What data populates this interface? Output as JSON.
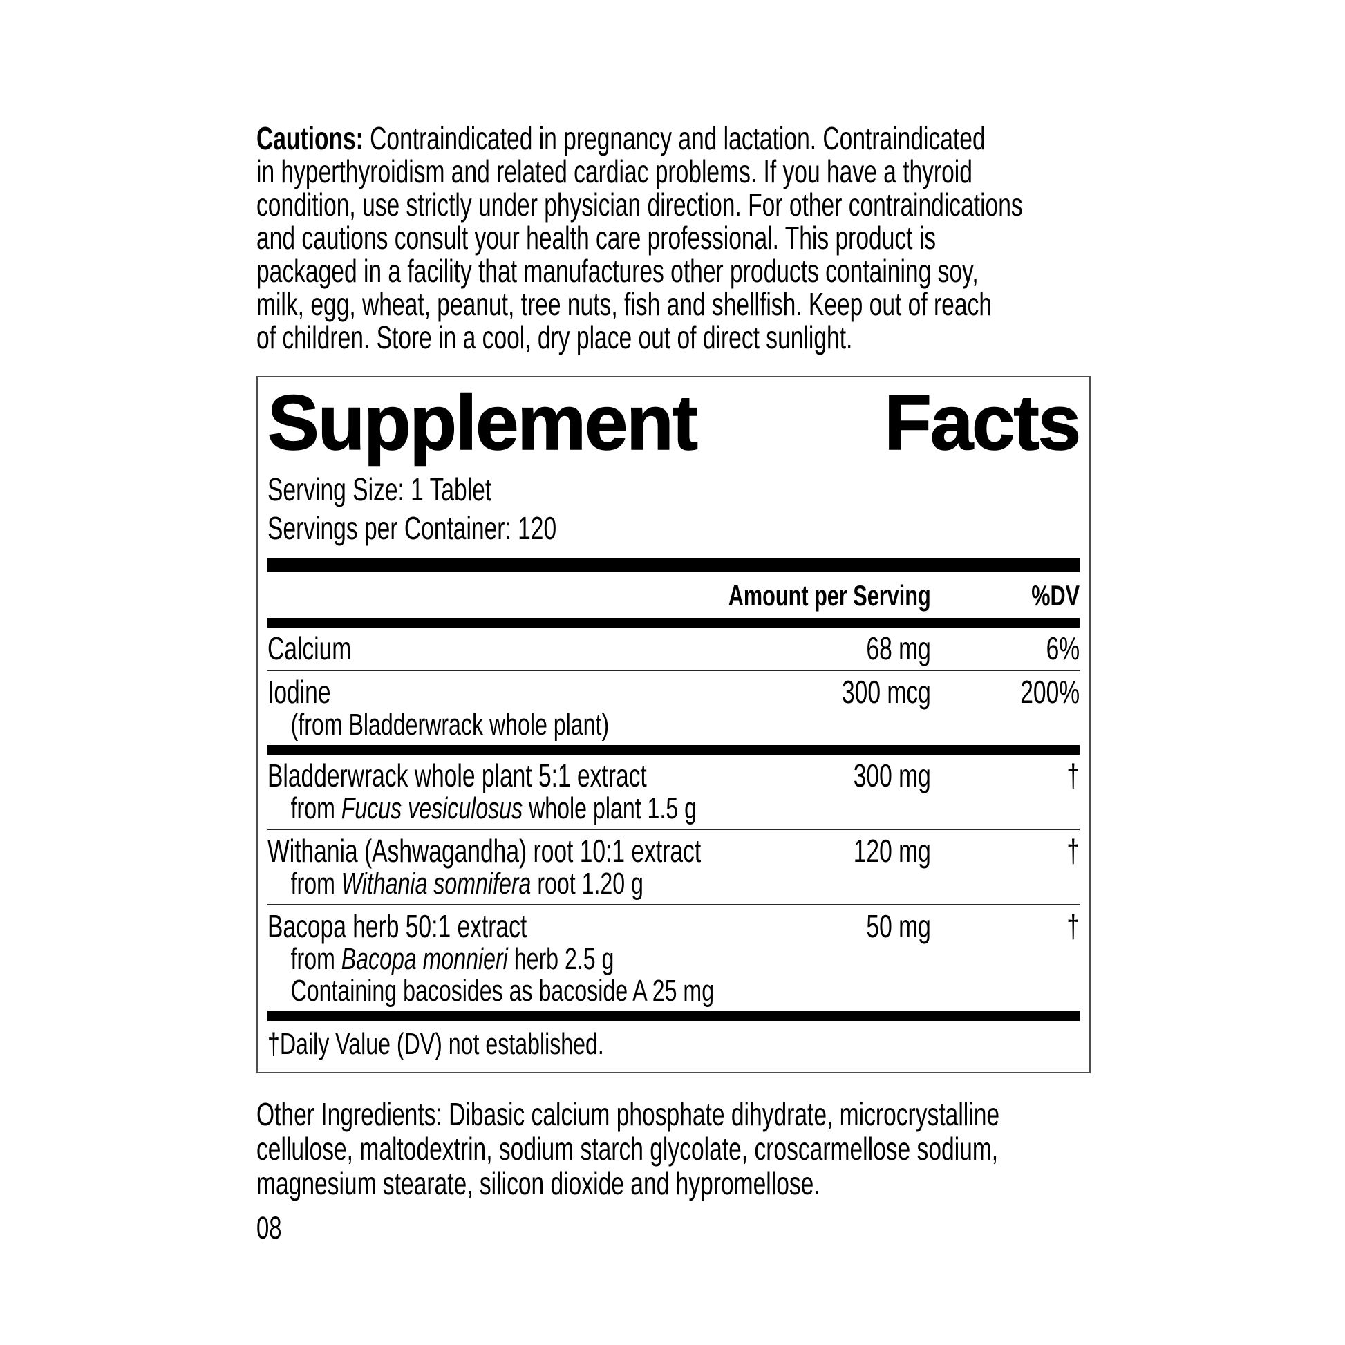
{
  "cautions": {
    "label": "Cautions:",
    "first_line_rest": "Contraindicated in pregnancy and lactation. Contraindicated",
    "lines": [
      "in hyperthyroidism and related cardiac problems. If you have a thyroid",
      "condition, use strictly under physician direction. For other contraindications",
      "and cautions consult your health care professional. This product is",
      "packaged in a facility that manufactures other products containing soy,",
      "milk, egg, wheat, peanut, tree nuts, fish and shellfish. Keep out of reach",
      "of children. Store in a cool, dry place out of direct sunlight."
    ]
  },
  "supplement_facts": {
    "title_word1": "Supplement",
    "title_word2": "Facts",
    "serving_size": "Serving Size: 1 Tablet",
    "servings_per_container": "Servings per Container: 120",
    "header_amount": "Amount per Serving",
    "header_dv": "%DV",
    "rows": [
      {
        "name": "Calcium",
        "amount": "68 mg",
        "dv": "6%"
      },
      {
        "name": "Iodine",
        "amount": "300 mcg",
        "dv": "200%",
        "sub": "(from Bladderwrack whole plant)"
      },
      {
        "name": "Bladderwrack whole plant 5:1 extract",
        "amount": "300 mg",
        "dv": "†",
        "sub_prefix": "from",
        "sub_italic": "Fucus vesiculosus",
        "sub_suffix": "whole plant 1.5 g"
      },
      {
        "name": "Withania (Ashwagandha) root 10:1 extract",
        "amount": "120 mg",
        "dv": "†",
        "sub_prefix": "from",
        "sub_italic": "Withania somnifera",
        "sub_suffix": "root 1.20 g"
      },
      {
        "name": "Bacopa herb 50:1 extract",
        "amount": "50 mg",
        "dv": "†",
        "sub_prefix": "from",
        "sub_italic": "Bacopa monnieri",
        "sub_suffix": "herb 2.5 g",
        "sub2": "Containing bacosides as bacoside A 25 mg"
      }
    ],
    "footnote": "†Daily Value (DV) not established."
  },
  "other_ingredients": {
    "lines": [
      "Other Ingredients: Dibasic calcium phosphate dihydrate, microcrystalline",
      "cellulose, maltodextrin, sodium starch glycolate, croscarmellose sodium,",
      "magnesium stearate, silicon dioxide and hypromellose."
    ]
  },
  "page_number": "08"
}
